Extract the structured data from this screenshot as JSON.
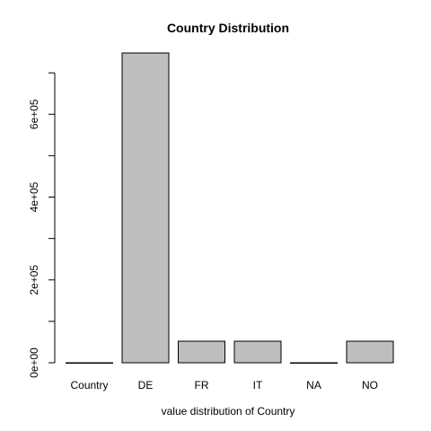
{
  "chart_data": {
    "type": "bar",
    "title": "Country Distribution",
    "xlabel": "value distribution of Country",
    "ylabel": "",
    "categories": [
      "Country",
      "DE",
      "FR",
      "IT",
      "NA",
      "NO"
    ],
    "values": [
      1,
      748000,
      52000,
      52000,
      1,
      52000
    ],
    "ylim": [
      0,
      748000
    ],
    "y_ticks": [
      0,
      100000,
      200000,
      300000,
      400000,
      500000,
      600000,
      700000
    ],
    "y_tick_labels": [
      "0e+00",
      "",
      "2e+05",
      "",
      "4e+05",
      "",
      "6e+05",
      ""
    ],
    "bar_color": "#bebebe",
    "grid": false,
    "legend": "none"
  }
}
